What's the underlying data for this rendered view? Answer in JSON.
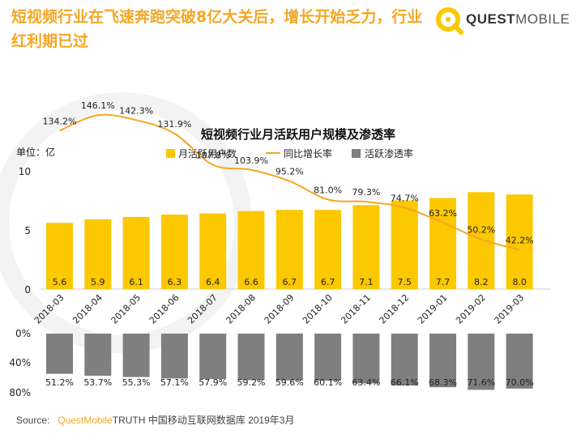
{
  "headline": "短视频行业在飞速奔跑突破8亿大关后，增长开始乏力，行业红利期已过",
  "logo": {
    "part1": "QUEST",
    "part2": "MOBILE",
    "icon": "quest-mobile-logo-icon"
  },
  "colors": {
    "accent": "#f5a623",
    "bar": "#fcc800",
    "line": "#f5a623",
    "gray": "#7f7f7f"
  },
  "source": {
    "prefix": "Source:",
    "brand": "QuestMobile",
    "rest": "TRUTH 中国移动互联网数据库 2019年3月"
  },
  "chart_data": {
    "type": "bar",
    "title": "短视频行业月活跃用户规模及渗透率",
    "unit_label": "单位：亿",
    "categories": [
      "2018-03",
      "2018-04",
      "2018-05",
      "2018-06",
      "2018-07",
      "2018-08",
      "2018-09",
      "2018-10",
      "2018-11",
      "2018-12",
      "2019-01",
      "2019-02",
      "2019-03"
    ],
    "series": [
      {
        "name": "月活跃用户数",
        "type": "bar",
        "values": [
          5.6,
          5.9,
          6.1,
          6.3,
          6.4,
          6.6,
          6.7,
          6.7,
          7.1,
          7.5,
          7.7,
          8.2,
          8.0
        ]
      },
      {
        "name": "同比增长率",
        "type": "line",
        "values": [
          134.2,
          146.1,
          142.3,
          131.9,
          107.8,
          103.9,
          95.2,
          81.0,
          79.3,
          74.7,
          63.2,
          50.2,
          42.2
        ]
      },
      {
        "name": "活跃渗透率",
        "type": "bar",
        "values": [
          51.2,
          53.7,
          55.3,
          57.1,
          57.9,
          59.2,
          59.6,
          60.1,
          63.4,
          66.1,
          68.3,
          71.6,
          70.0
        ]
      }
    ],
    "y_top": {
      "ticks": [
        "0",
        "5",
        "10"
      ],
      "ylim": [
        0,
        10
      ]
    },
    "y_bottom": {
      "ticks": [
        "0%",
        "40%",
        "80%"
      ],
      "ylim": [
        0,
        80
      ],
      "inverted": true
    }
  }
}
